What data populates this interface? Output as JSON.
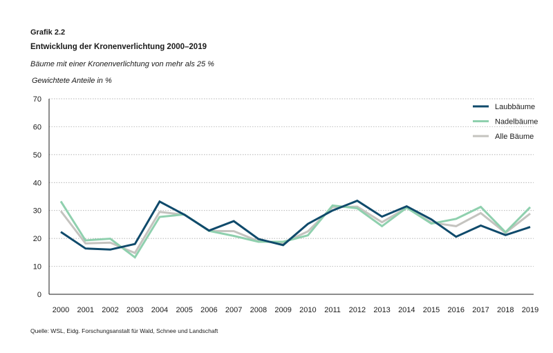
{
  "header": {
    "chart_label": "Grafik 2.2",
    "title": "Entwicklung der Kronenverlichtung 2000–2019",
    "subtitle": "Bäume mit einer Kronenverlichtung von mehr als 25 %",
    "unit": "Gewichtete Anteile in %"
  },
  "footer": {
    "source": "Quelle: WSL, Eidg. Forschungsanstalt für Wald, Schnee und Landschaft"
  },
  "chart_data": {
    "type": "line",
    "title": "Entwicklung der Kronenverlichtung 2000–2019",
    "subtitle": "Bäume mit einer Kronenverlichtung von mehr als 25 %",
    "ylabel": "Gewichtete Anteile in %",
    "xlabel": "",
    "categories": [
      "2000",
      "2001",
      "2002",
      "2003",
      "2004",
      "2005",
      "2006",
      "2007",
      "2008",
      "2009",
      "2010",
      "2011",
      "2012",
      "2013",
      "2014",
      "2015",
      "2016",
      "2017",
      "2018",
      "2019"
    ],
    "ylim": [
      0,
      70
    ],
    "yticks": [
      0,
      10,
      20,
      30,
      40,
      50,
      60,
      70
    ],
    "grid": true,
    "legend_position": "top-right",
    "series": [
      {
        "name": "Laubbäume",
        "color": "#0f4a6b",
        "values": [
          22.3,
          16.4,
          16.0,
          18.0,
          33.2,
          28.5,
          22.8,
          26.2,
          19.8,
          17.6,
          25.2,
          30.0,
          33.5,
          27.8,
          31.5,
          26.8,
          20.6,
          24.6,
          21.2,
          24.1
        ]
      },
      {
        "name": "Nadelbäume",
        "color": "#8fd0ae",
        "values": [
          33.3,
          19.3,
          19.9,
          13.2,
          27.7,
          28.6,
          22.7,
          20.9,
          18.8,
          18.8,
          21.1,
          31.8,
          30.8,
          24.4,
          31.0,
          25.3,
          27.0,
          31.3,
          22.2,
          31.2
        ]
      },
      {
        "name": "Alle Bäume",
        "color": "#c4c3bf",
        "values": [
          29.8,
          18.2,
          18.5,
          14.8,
          29.5,
          28.5,
          22.7,
          22.6,
          19.0,
          18.4,
          22.5,
          31.2,
          31.4,
          25.8,
          31.0,
          25.7,
          24.4,
          29.1,
          22.0,
          28.9
        ]
      }
    ]
  }
}
